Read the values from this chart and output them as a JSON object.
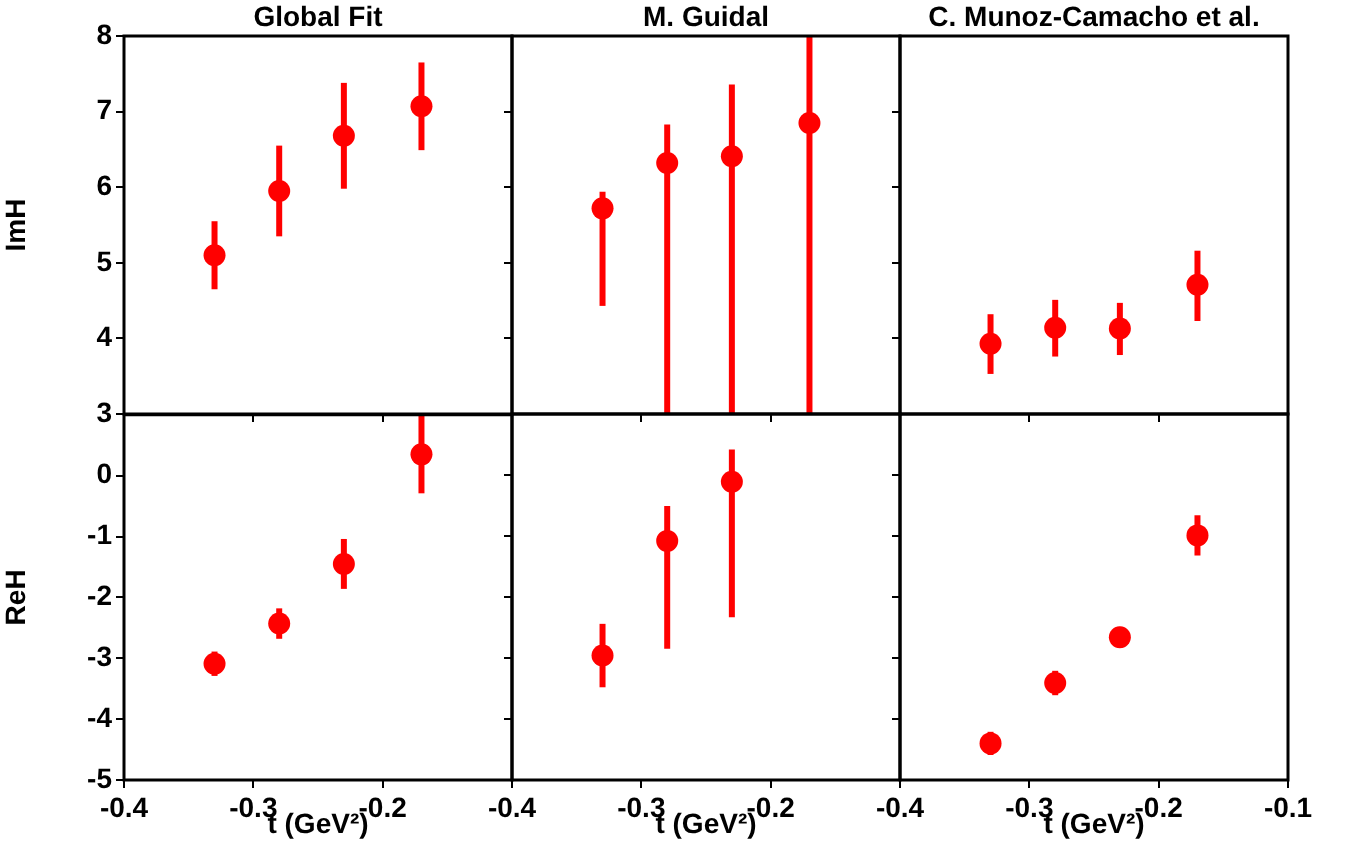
{
  "chart_data": [
    {
      "type": "scatter",
      "title": "Global Fit",
      "ylabel": "ImH",
      "x": [
        -0.33,
        -0.28,
        -0.23,
        -0.17
      ],
      "xlim": [
        -0.4,
        -0.1
      ],
      "xticks": [
        -0.4,
        -0.3,
        -0.2
      ],
      "ylim": [
        3,
        8
      ],
      "yticks": [
        3,
        4,
        5,
        6,
        7,
        8
      ],
      "tick_labels": "y",
      "marker": "circle",
      "series": [
        {
          "color": "#ff0000",
          "values": [
            5.1,
            5.95,
            6.68,
            7.07
          ],
          "errors": [
            0.45,
            0.6,
            0.7,
            0.58
          ]
        }
      ]
    },
    {
      "type": "scatter",
      "title": "M. Guidal",
      "x": [
        -0.33,
        -0.28,
        -0.23,
        -0.17
      ],
      "xlim": [
        -0.4,
        -0.1
      ],
      "xticks": [
        -0.4,
        -0.3,
        -0.2
      ],
      "ylim": [
        3,
        8
      ],
      "yticks": [
        3,
        4,
        5,
        6,
        7,
        8
      ],
      "tick_labels": false,
      "marker": "circle",
      "series": [
        {
          "color": "#ff0000",
          "values": [
            5.72,
            6.32,
            6.41,
            6.85
          ],
          "errors": [
            [
              4.43,
              5.94
            ],
            [
              3,
              6.83
            ],
            [
              3,
              7.36
            ],
            [
              3,
              8
            ]
          ]
        }
      ]
    },
    {
      "type": "scatter",
      "title": "C. Munoz-Camacho et al.",
      "x": [
        -0.33,
        -0.28,
        -0.23,
        -0.17
      ],
      "xlim": [
        -0.4,
        -0.1
      ],
      "xticks": [
        -0.4,
        -0.3,
        -0.2,
        -0.1
      ],
      "ylim": [
        3,
        8
      ],
      "yticks": [
        3,
        4,
        5,
        6,
        7,
        8
      ],
      "tick_labels": false,
      "marker": "circle",
      "series": [
        {
          "color": "#ff0000",
          "values": [
            3.93,
            4.14,
            4.13,
            4.71
          ],
          "errors": [
            [
              3.53,
              4.32
            ],
            [
              3.76,
              4.51
            ],
            [
              3.78,
              4.47
            ],
            [
              4.23,
              5.16
            ]
          ]
        }
      ]
    },
    {
      "type": "scatter",
      "xlabel": "t (GeV²)",
      "ylabel": "ReH",
      "x": [
        -0.33,
        -0.28,
        -0.23,
        -0.17
      ],
      "xlim": [
        -0.4,
        -0.1
      ],
      "xticks": [
        -0.4,
        -0.3,
        -0.2
      ],
      "ylim": [
        -5,
        1
      ],
      "yticks": [
        -5,
        -4,
        -3,
        -2,
        -1,
        0
      ],
      "marker": "circle",
      "series": [
        {
          "color": "#ff0000",
          "values": [
            -3.09,
            -2.43,
            -1.45,
            0.35
          ],
          "errors": [
            0.2,
            0.25,
            0.41,
            [
              -0.29,
              1
            ]
          ]
        }
      ]
    },
    {
      "type": "scatter",
      "xlabel": "t (GeV²)",
      "x": [
        -0.33,
        -0.28,
        -0.23
      ],
      "xlim": [
        -0.4,
        -0.1
      ],
      "xticks": [
        -0.4,
        -0.3,
        -0.2
      ],
      "ylim": [
        -5,
        1
      ],
      "yticks": [
        -5,
        -4,
        -3,
        -2,
        -1,
        0
      ],
      "tick_labels": "x",
      "marker": "circle",
      "series": [
        {
          "color": "#ff0000",
          "values": [
            -2.96,
            -1.08,
            -0.11
          ],
          "errors": [
            0.52,
            [
              -2.85,
              -0.51
            ],
            [
              -2.33,
              0.42
            ]
          ]
        }
      ]
    },
    {
      "type": "scatter",
      "xlabel": "t (GeV²)",
      "x": [
        -0.33,
        -0.28,
        -0.23,
        -0.17
      ],
      "xlim": [
        -0.4,
        -0.1
      ],
      "xticks": [
        -0.4,
        -0.3,
        -0.2,
        -0.1
      ],
      "ylim": [
        -5,
        1
      ],
      "yticks": [
        -5,
        -4,
        -3,
        -2,
        -1,
        0
      ],
      "tick_labels": "x",
      "marker": "circle",
      "series": [
        {
          "color": "#ff0000",
          "values": [
            -4.4,
            -3.41,
            -2.66,
            -0.99
          ],
          "errors": [
            0.19,
            0.2,
            0.17,
            0.33
          ]
        }
      ]
    }
  ]
}
